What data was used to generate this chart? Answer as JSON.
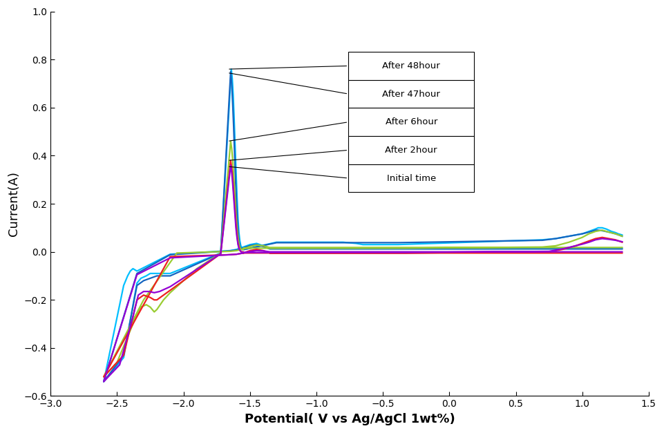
{
  "xlabel": "Potential( V vs Ag/AgCl 1wt%)",
  "ylabel": "Current(A)",
  "xlim": [
    -3,
    1.5
  ],
  "ylim": [
    -0.6,
    1.0
  ],
  "xticks": [
    -3,
    -2.5,
    -2,
    -1.5,
    -1,
    -0.5,
    0,
    0.5,
    1,
    1.5
  ],
  "yticks": [
    -0.6,
    -0.4,
    -0.2,
    0,
    0.2,
    0.4,
    0.6,
    0.8,
    1.0
  ],
  "legend_labels": [
    "After 48hour",
    "After 47hour",
    "After 6hour",
    "After 2hour",
    "Initial time"
  ],
  "colors": [
    "#00BFFF",
    "#1565C0",
    "#9ACD32",
    "#EE2020",
    "#9400D3"
  ],
  "line_width": 1.6
}
